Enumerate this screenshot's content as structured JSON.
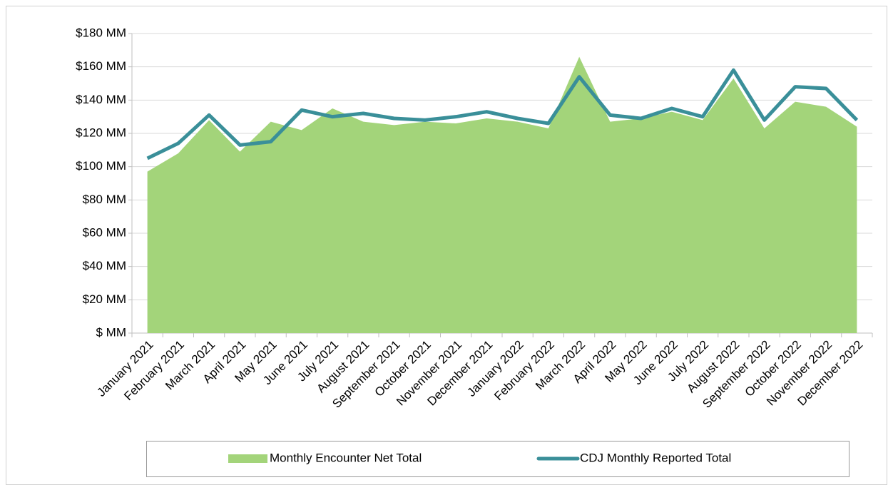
{
  "chart_data": {
    "type": "combo",
    "categories": [
      "January 2021",
      "February 2021",
      "March 2021",
      "April 2021",
      "May 2021",
      "June 2021",
      "July 2021",
      "August 2021",
      "September 2021",
      "October 2021",
      "November 2021",
      "December 2021",
      "January 2022",
      "February 2022",
      "March 2022",
      "April 2022",
      "May 2022",
      "June 2022",
      "July 2022",
      "August 2022",
      "September 2022",
      "October 2022",
      "November 2022",
      "December 2022"
    ],
    "series": [
      {
        "name": "Monthly Encounter Net Total",
        "type": "area",
        "color": "#a3d47a",
        "values": [
          97,
          108,
          128,
          109,
          127,
          122,
          135,
          127,
          125,
          127,
          126,
          129,
          127,
          123,
          166,
          127,
          129,
          133,
          128,
          153,
          123,
          139,
          136,
          124
        ]
      },
      {
        "name": "CDJ Monthly Reported Total",
        "type": "line",
        "color": "#3a8f99",
        "values": [
          105,
          114,
          131,
          113,
          115,
          134,
          130,
          132,
          129,
          128,
          130,
          133,
          129,
          126,
          154,
          131,
          129,
          135,
          130,
          158,
          128,
          148,
          147,
          128
        ]
      }
    ],
    "ylim": [
      0,
      180
    ],
    "yticks": [
      {
        "value": 0,
        "label": "$ MM"
      },
      {
        "value": 20,
        "label": "$20 MM"
      },
      {
        "value": 40,
        "label": "$40 MM"
      },
      {
        "value": 60,
        "label": "$60 MM"
      },
      {
        "value": 80,
        "label": "$80 MM"
      },
      {
        "value": 100,
        "label": "$100 MM"
      },
      {
        "value": 120,
        "label": "$120 MM"
      },
      {
        "value": 140,
        "label": "$140 MM"
      },
      {
        "value": 160,
        "label": "$160 MM"
      },
      {
        "value": 180,
        "label": "$180 MM"
      }
    ],
    "grid": true
  }
}
